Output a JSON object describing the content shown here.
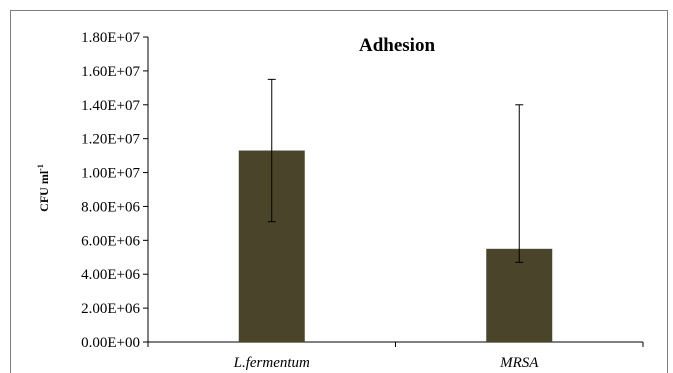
{
  "chart_data": {
    "type": "bar",
    "title": "Adhesion",
    "ylabel_main": "CFU ml",
    "ylabel_sup": "-1",
    "xlabel": "",
    "categories": [
      "L.fermentum",
      "MRSA"
    ],
    "values": [
      11300000,
      5500000
    ],
    "error_low": [
      7100000,
      4700000
    ],
    "error_high": [
      15500000,
      14000000
    ],
    "ylim": [
      0,
      18000000
    ],
    "yticks": [
      0,
      2000000,
      4000000,
      6000000,
      8000000,
      10000000,
      12000000,
      14000000,
      16000000,
      18000000
    ],
    "ytick_labels": [
      "0.00E+00",
      "2.00E+06",
      "4.00E+06",
      "6.00E+06",
      "8.00E+06",
      "1.00E+07",
      "1.20E+07",
      "1.40E+07",
      "1.60E+07",
      "1.80E+07"
    ],
    "bar_color": "#4a452a",
    "grid": false,
    "legend": "none"
  }
}
